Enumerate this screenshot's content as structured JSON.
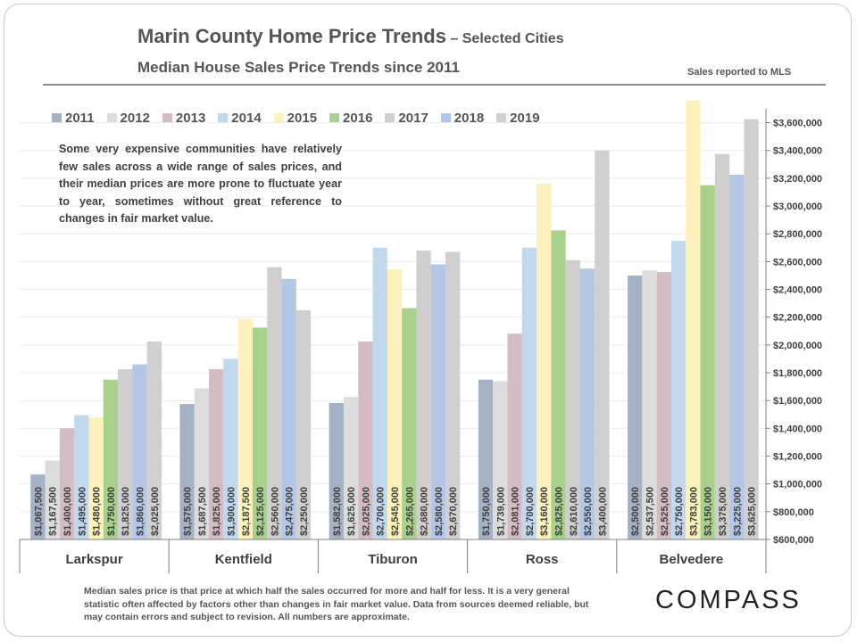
{
  "title": {
    "main": "Marin County Home Price Trends",
    "suffix": " – Selected Cities",
    "subtitle": "Median House Sales Price Trends since 2011",
    "source_note": "Sales reported to MLS"
  },
  "callout": "Some very expensive communities have relatively few sales across a wide range of sales prices, and their median prices are more prone to fluctuate year to year, sometimes without great reference to changes in fair market value.",
  "footer": {
    "note": "Median sales price is that price at which half the sales occurred for more and half for less. It is a very general statistic often affected by factors other than changes in fair market value. Data from sources deemed reliable, but may contain errors and subject to revision. All numbers are approximate.",
    "logo": "COMPASS"
  },
  "colors": {
    "2011": "#a5b2c5",
    "2012": "#dcdcdc",
    "2013": "#d4bcc5",
    "2014": "#c2d8ee",
    "2015": "#fdf2bb",
    "2016": "#a9d18e",
    "2017": "#d0cece",
    "2018": "#b4c7e7",
    "2019": "#d0d0d0",
    "axis": "#808080",
    "text": "#404040"
  },
  "chart_data": {
    "type": "bar",
    "categories": [
      "Larkspur",
      "Kentfield",
      "Tiburon",
      "Ross",
      "Belvedere"
    ],
    "series": [
      {
        "name": "2011",
        "values": [
          1067500,
          1575000,
          1582000,
          1750000,
          2500000
        ],
        "labels": [
          "$1,067,500",
          "$1,575,000",
          "$1,582,000",
          "$1,750,000",
          "$2,500,000"
        ]
      },
      {
        "name": "2012",
        "values": [
          1167500,
          1687500,
          1625000,
          1739000,
          2537500
        ],
        "labels": [
          "$1,167,500",
          "$1,687,500",
          "$1,625,000",
          "$1,739,000",
          "$2,537,500"
        ]
      },
      {
        "name": "2013",
        "values": [
          1400000,
          1825000,
          2025000,
          2081000,
          2525000
        ],
        "labels": [
          "$1,400,000",
          "$1,825,000",
          "$2,025,000",
          "$2,081,000",
          "$2,525,000"
        ]
      },
      {
        "name": "2014",
        "values": [
          1495000,
          1900000,
          2700000,
          2700000,
          2750000
        ],
        "labels": [
          "$1,495,000",
          "$1,900,000",
          "$2,700,000",
          "$2,700,000",
          "$2,750,000"
        ]
      },
      {
        "name": "2015",
        "values": [
          1480000,
          2187500,
          2545000,
          3160000,
          3783000
        ],
        "labels": [
          "$1,480,000",
          "$2,187,500",
          "$2,545,000",
          "$3,160,000",
          "$3,783,000"
        ]
      },
      {
        "name": "2016",
        "values": [
          1750000,
          2125000,
          2265000,
          2825000,
          3150000
        ],
        "labels": [
          "$1,750,000",
          "$2,125,000",
          "$2,265,000",
          "$2,825,000",
          "$3,150,000"
        ]
      },
      {
        "name": "2017",
        "values": [
          1825000,
          2560000,
          2680000,
          2610000,
          3375000
        ],
        "labels": [
          "$1,825,000",
          "$2,560,000",
          "$2,680,000",
          "$2,610,000",
          "$3,375,000"
        ]
      },
      {
        "name": "2018",
        "values": [
          1860000,
          2475000,
          2580000,
          2550000,
          3225000
        ],
        "labels": [
          "$1,860,000",
          "$2,475,000",
          "$2,580,000",
          "$2,550,000",
          "$3,225,000"
        ]
      },
      {
        "name": "2019",
        "values": [
          2025000,
          2250000,
          2670000,
          3400000,
          3625000
        ],
        "labels": [
          "$2,025,000",
          "$2,250,000",
          "$2,670,000",
          "$3,400,000",
          "$3,625,000"
        ]
      }
    ],
    "ylim": [
      600000,
      3700000
    ],
    "yticks": [
      600000,
      800000,
      1000000,
      1200000,
      1400000,
      1600000,
      1800000,
      2000000,
      2200000,
      2400000,
      2600000,
      2800000,
      3000000,
      3200000,
      3400000,
      3600000
    ],
    "ytick_labels": [
      "$600,000",
      "$800,000",
      "$1,000,000",
      "$1,200,000",
      "$1,400,000",
      "$1,600,000",
      "$1,800,000",
      "$2,000,000",
      "$2,200,000",
      "$2,400,000",
      "$2,600,000",
      "$2,800,000",
      "$3,000,000",
      "$3,200,000",
      "$3,400,000",
      "$3,600,000"
    ],
    "y_axis_side": "right",
    "grid": true,
    "legend": "top",
    "data_labels": "inside-base-rotated"
  }
}
